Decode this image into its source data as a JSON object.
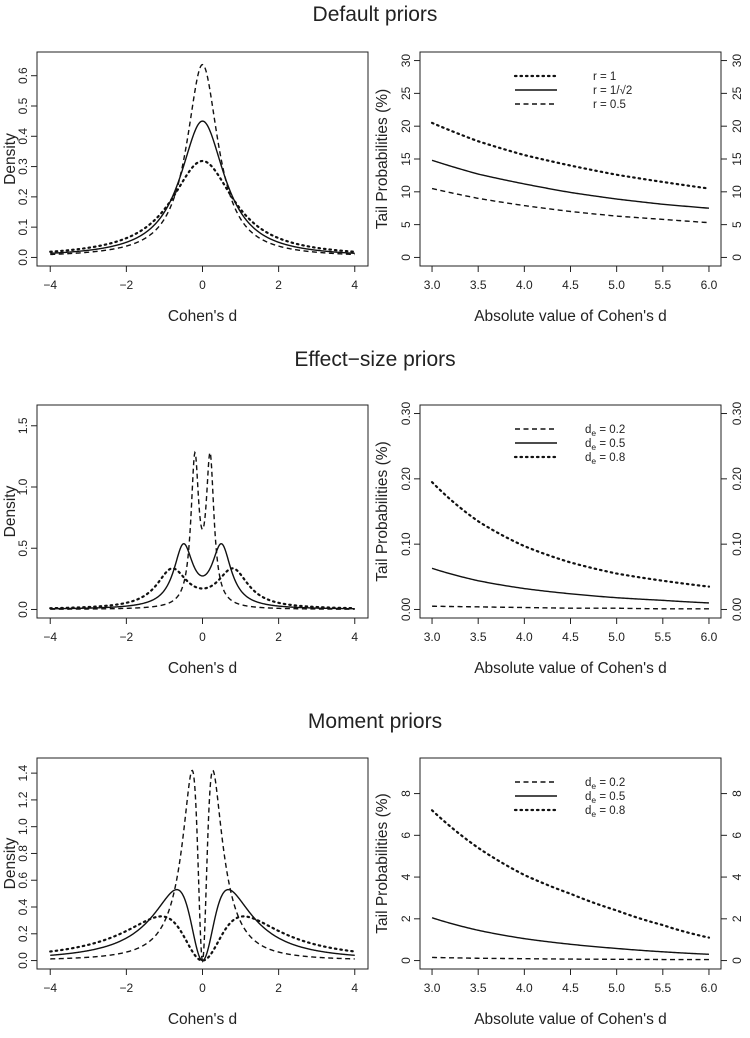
{
  "rows": [
    {
      "title": "Default priors",
      "left": {
        "type": "line",
        "xlabel": "Cohen's d",
        "ylabel": "Density",
        "xlim": [
          -4,
          4
        ],
        "xticks": [
          "-4",
          "-2",
          "0",
          "2",
          "4"
        ],
        "ylim": [
          0,
          0.65
        ],
        "yticks": [
          "0.0",
          "0.1",
          "0.2",
          "0.3",
          "0.4",
          "0.5",
          "0.6"
        ],
        "series": [
          {
            "name": "r = 1",
            "style": "dotted",
            "family": "cauchy",
            "param": 1.0
          },
          {
            "name": "r = 1/√2",
            "style": "solid",
            "family": "cauchy",
            "param": 0.7071
          },
          {
            "name": "r = 0.5",
            "style": "dashed",
            "family": "cauchy",
            "param": 0.5
          }
        ]
      },
      "right": {
        "type": "line",
        "xlabel": "Absolute value of Cohen's d",
        "ylabel": "Tail Probabilities (%)",
        "xlim": [
          3.0,
          6.0
        ],
        "xticks": [
          "3.0",
          "3.5",
          "4.0",
          "4.5",
          "5.0",
          "5.5",
          "6.0"
        ],
        "ylim": [
          0,
          30
        ],
        "yticks": [
          "0",
          "5",
          "10",
          "15",
          "20",
          "25",
          "30"
        ],
        "legend": [
          "r = 1",
          "r = 1/√2",
          "r = 0.5"
        ],
        "legend_styles": [
          "dotted",
          "solid",
          "dashed"
        ],
        "series": [
          {
            "name": "r = 1",
            "style": "dotted",
            "x": [
              3.0,
              3.5,
              4.0,
              4.5,
              5.0,
              5.5,
              6.0
            ],
            "values": [
              20.5,
              17.7,
              15.6,
              14.0,
              12.6,
              11.5,
              10.5
            ]
          },
          {
            "name": "r = 1/√2",
            "style": "solid",
            "x": [
              3.0,
              3.5,
              4.0,
              4.5,
              5.0,
              5.5,
              6.0
            ],
            "values": [
              14.8,
              12.7,
              11.2,
              9.9,
              8.9,
              8.1,
              7.5
            ]
          },
          {
            "name": "r = 0.5",
            "style": "dashed",
            "x": [
              3.0,
              3.5,
              4.0,
              4.5,
              5.0,
              5.5,
              6.0
            ],
            "values": [
              10.5,
              9.0,
              7.9,
              7.0,
              6.3,
              5.8,
              5.3
            ]
          }
        ]
      }
    },
    {
      "title": "Effect−size priors",
      "left": {
        "type": "line",
        "xlabel": "Cohen's d",
        "ylabel": "Density",
        "xlim": [
          -4,
          4
        ],
        "xticks": [
          "-4",
          "-2",
          "0",
          "2",
          "4"
        ],
        "ylim": [
          0,
          1.6
        ],
        "yticks": [
          "0.0",
          "0.5",
          "1.0",
          "1.5"
        ],
        "series": [
          {
            "name": "de = 0.2",
            "style": "dashed",
            "family": "effectsize",
            "param": 0.2
          },
          {
            "name": "de = 0.5",
            "style": "solid",
            "family": "effectsize",
            "param": 0.5
          },
          {
            "name": "de = 0.8",
            "style": "dotted",
            "family": "effectsize",
            "param": 0.8
          }
        ]
      },
      "right": {
        "type": "line",
        "xlabel": "Absolute value of Cohen's d",
        "ylabel": "Tail Probabilities (%)",
        "xlim": [
          3.0,
          6.0
        ],
        "xticks": [
          "3.0",
          "3.5",
          "4.0",
          "4.5",
          "5.0",
          "5.5",
          "6.0"
        ],
        "ylim": [
          0,
          0.3
        ],
        "yticks": [
          "0.00",
          "0.10",
          "0.20",
          "0.30"
        ],
        "legend_text": "d",
        "legend_sub": "e",
        "legend": [
          "= 0.2",
          "= 0.5",
          "= 0.8"
        ],
        "legend_styles": [
          "dashed",
          "solid",
          "dotted"
        ],
        "series": [
          {
            "name": "de = 0.2",
            "style": "dashed",
            "x": [
              3.0,
              3.5,
              4.0,
              4.5,
              5.0,
              5.5,
              6.0
            ],
            "values": [
              0.005,
              0.004,
              0.003,
              0.002,
              0.002,
              0.001,
              0.001
            ]
          },
          {
            "name": "de = 0.5",
            "style": "solid",
            "x": [
              3.0,
              3.5,
              4.0,
              4.5,
              5.0,
              5.5,
              6.0
            ],
            "values": [
              0.063,
              0.044,
              0.032,
              0.024,
              0.018,
              0.014,
              0.01
            ]
          },
          {
            "name": "de = 0.8",
            "style": "dotted",
            "x": [
              3.0,
              3.5,
              4.0,
              4.5,
              5.0,
              5.5,
              6.0
            ],
            "values": [
              0.195,
              0.135,
              0.097,
              0.072,
              0.055,
              0.044,
              0.035
            ]
          }
        ]
      }
    },
    {
      "title": "Moment priors",
      "left": {
        "type": "line",
        "xlabel": "Cohen's d",
        "ylabel": "Density",
        "xlim": [
          -4,
          4
        ],
        "xticks": [
          "-4",
          "-2",
          "0",
          "2",
          "4"
        ],
        "ylim": [
          0,
          1.45
        ],
        "yticks": [
          "0.0",
          "0.2",
          "0.4",
          "0.6",
          "0.8",
          "1.0",
          "1.2",
          "1.4"
        ],
        "series": [
          {
            "name": "de = 0.2",
            "style": "dashed",
            "family": "moment",
            "param": 0.2
          },
          {
            "name": "de = 0.5",
            "style": "solid",
            "family": "moment",
            "param": 0.5
          },
          {
            "name": "de = 0.8",
            "style": "dotted",
            "family": "moment",
            "param": 0.8
          }
        ]
      },
      "right": {
        "type": "line",
        "xlabel": "Absolute value of Cohen's d",
        "ylabel": "Tail Probabilities (%)",
        "xlim": [
          3.0,
          6.0
        ],
        "xticks": [
          "3.0",
          "3.5",
          "4.0",
          "4.5",
          "5.0",
          "5.5",
          "6.0"
        ],
        "ylim": [
          0,
          9.3
        ],
        "yticks": [
          "0",
          "2",
          "4",
          "6",
          "8"
        ],
        "legend_text": "d",
        "legend_sub": "e",
        "legend": [
          "= 0.2",
          "= 0.5",
          "= 0.8"
        ],
        "legend_styles": [
          "dashed",
          "solid",
          "dotted"
        ],
        "series": [
          {
            "name": "de = 0.2",
            "style": "dashed",
            "x": [
              3.0,
              3.5,
              4.0,
              4.5,
              5.0,
              5.5,
              6.0
            ],
            "values": [
              0.15,
              0.11,
              0.09,
              0.07,
              0.06,
              0.05,
              0.05
            ]
          },
          {
            "name": "de = 0.5",
            "style": "solid",
            "x": [
              3.0,
              3.5,
              4.0,
              4.5,
              5.0,
              5.5,
              6.0
            ],
            "values": [
              2.05,
              1.45,
              1.05,
              0.78,
              0.58,
              0.42,
              0.3
            ]
          },
          {
            "name": "de = 0.8",
            "style": "dotted",
            "x": [
              3.0,
              3.5,
              4.0,
              4.5,
              5.0,
              5.5,
              6.0
            ],
            "values": [
              7.2,
              5.4,
              4.1,
              3.2,
              2.4,
              1.7,
              1.1
            ]
          }
        ]
      }
    }
  ]
}
